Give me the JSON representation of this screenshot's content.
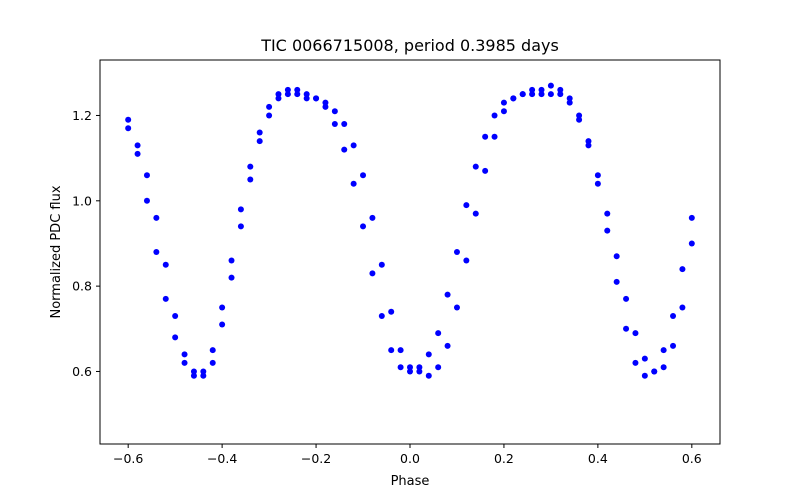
{
  "chart_data": {
    "type": "scatter",
    "title": "TIC 0066715008, period 0.3985 days",
    "xlabel": "Phase",
    "ylabel": "Normalized PDC flux",
    "xlim": [
      -0.66,
      0.66
    ],
    "ylim": [
      0.43,
      1.33
    ],
    "x_ticks": [
      -0.6,
      -0.4,
      -0.2,
      0.0,
      0.2,
      0.4,
      0.6
    ],
    "x_tick_labels": [
      "−0.6",
      "−0.4",
      "−0.2",
      "0.0",
      "0.2",
      "0.4",
      "0.6"
    ],
    "y_ticks": [
      0.6,
      0.8,
      1.0,
      1.2
    ],
    "y_tick_labels": [
      "0.6",
      "0.8",
      "1.0",
      "1.2"
    ],
    "grid": false,
    "marker_color": "#0000ff",
    "series": [
      {
        "name": "",
        "x": [
          -0.6,
          -0.58,
          -0.56,
          -0.54,
          -0.52,
          -0.5,
          -0.48,
          -0.46,
          -0.44,
          -0.42,
          -0.4,
          -0.38,
          -0.36,
          -0.34,
          -0.32,
          -0.3,
          -0.28,
          -0.26,
          -0.24,
          -0.22,
          -0.2,
          -0.18,
          -0.16,
          -0.14,
          -0.12,
          -0.1,
          -0.08,
          -0.06,
          -0.04,
          -0.02,
          0.0,
          0.02,
          0.04,
          0.06,
          0.08,
          0.1,
          0.12,
          0.14,
          0.16,
          0.18,
          0.2,
          0.22,
          0.24,
          0.26,
          0.28,
          0.3,
          0.32,
          0.34,
          0.36,
          0.38,
          0.4,
          0.42,
          0.44,
          0.46,
          0.48,
          0.5,
          0.52,
          0.54,
          0.56,
          0.58,
          0.6
        ],
        "y": [
          1.17,
          1.13,
          1.06,
          0.96,
          0.85,
          0.73,
          0.64,
          0.6,
          0.59,
          0.62,
          0.71,
          0.82,
          0.94,
          1.05,
          1.14,
          1.2,
          1.24,
          1.25,
          1.25,
          1.24,
          1.24,
          1.23,
          1.21,
          1.18,
          1.13,
          1.06,
          0.96,
          0.85,
          0.74,
          0.65,
          0.61,
          0.6,
          0.59,
          0.61,
          0.66,
          0.75,
          0.86,
          0.97,
          1.07,
          1.15,
          1.21,
          1.24,
          1.25,
          1.25,
          1.25,
          1.25,
          1.25,
          1.23,
          1.19,
          1.13,
          1.04,
          0.93,
          0.81,
          0.7,
          0.62,
          0.59,
          0.6,
          0.65,
          0.73,
          0.84,
          0.96
        ]
      },
      {
        "name": "",
        "x": [
          -0.6,
          -0.58,
          -0.56,
          -0.54,
          -0.52,
          -0.5,
          -0.48,
          -0.46,
          -0.44,
          -0.42,
          -0.4,
          -0.38,
          -0.36,
          -0.34,
          -0.32,
          -0.3,
          -0.28,
          -0.26,
          -0.24,
          -0.22,
          -0.2,
          -0.18,
          -0.16,
          -0.14,
          -0.12,
          -0.1,
          -0.08,
          -0.06,
          -0.04,
          -0.02,
          0.0,
          0.02,
          0.04,
          0.06,
          0.08,
          0.1,
          0.12,
          0.14,
          0.16,
          0.18,
          0.2,
          0.22,
          0.24,
          0.26,
          0.28,
          0.3,
          0.32,
          0.34,
          0.36,
          0.38,
          0.4,
          0.42,
          0.44,
          0.46,
          0.48,
          0.5,
          0.52,
          0.54,
          0.56,
          0.58,
          0.6
        ],
        "y": [
          1.19,
          1.11,
          1.0,
          0.88,
          0.77,
          0.68,
          0.62,
          0.59,
          0.6,
          0.65,
          0.75,
          0.86,
          0.98,
          1.08,
          1.16,
          1.22,
          1.25,
          1.26,
          1.26,
          1.25,
          1.24,
          1.22,
          1.18,
          1.12,
          1.04,
          0.94,
          0.83,
          0.73,
          0.65,
          0.61,
          0.6,
          0.61,
          0.64,
          0.69,
          0.78,
          0.88,
          0.99,
          1.08,
          1.15,
          1.2,
          1.23,
          1.24,
          1.25,
          1.26,
          1.26,
          1.27,
          1.26,
          1.24,
          1.2,
          1.14,
          1.06,
          0.97,
          0.87,
          0.77,
          0.69,
          0.63,
          0.6,
          0.61,
          0.66,
          0.75,
          0.9
        ]
      }
    ]
  }
}
